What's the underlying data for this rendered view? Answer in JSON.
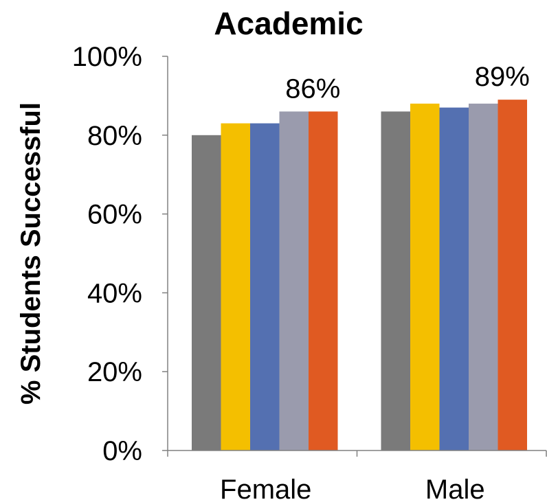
{
  "chart_data": {
    "type": "bar",
    "title": "Academic",
    "xlabel": "",
    "ylabel": "% Students Successful",
    "ylim": [
      0,
      100
    ],
    "yticks": [
      "0%",
      "20%",
      "40%",
      "60%",
      "80%",
      "100%"
    ],
    "categories": [
      "Female",
      "Male"
    ],
    "series": [
      {
        "values": [
          80,
          86
        ],
        "color": "#7a7a7a"
      },
      {
        "values": [
          83,
          88
        ],
        "color": "#f4bf00"
      },
      {
        "values": [
          83,
          87
        ],
        "color": "#5470b1"
      },
      {
        "values": [
          86,
          88
        ],
        "color": "#9a9bad"
      },
      {
        "values": [
          86,
          89
        ],
        "color": "#e05a22"
      }
    ],
    "data_labels": [
      "86%",
      "89%"
    ],
    "grid": false,
    "legend": "none"
  }
}
